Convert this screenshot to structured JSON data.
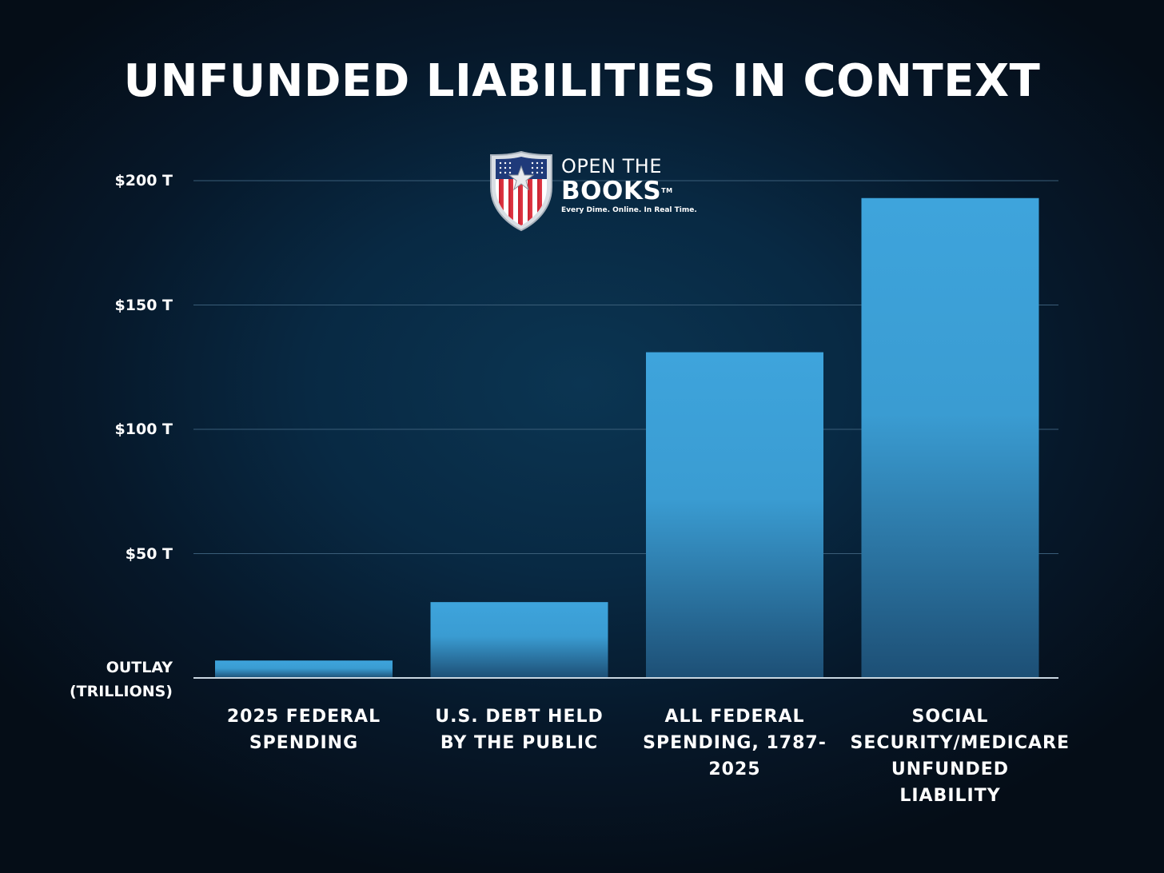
{
  "chart_data": {
    "type": "bar",
    "title": "UNFUNDED LIABILITIES IN CONTEXT",
    "ylabel_lines": [
      "OUTLAY",
      "(TRILLIONS)"
    ],
    "ylim": [
      0,
      200
    ],
    "ytick_values": [
      50,
      100,
      150,
      200
    ],
    "ytick_labels": [
      "$50 T",
      "$100 T",
      "$150 T",
      "$200 T"
    ],
    "grid": true,
    "categories": [
      "2025 FEDERAL SPENDING",
      "U.S. DEBT HELD BY THE PUBLIC",
      "ALL FEDERAL SPENDING, 1787-2025",
      "SOCIAL SECURITY/MEDICARE UNFUNDED LIABILITY"
    ],
    "values": [
      7,
      30.5,
      131,
      193
    ],
    "bar_color": "#3ea1d6"
  },
  "logo": {
    "line1": "OPEN THE",
    "line2": "BOOKS",
    "trademark": "TM",
    "tagline": "Every Dime. Online. In Real Time."
  },
  "colors": {
    "background": "#07101a",
    "text": "#ffffff",
    "bar_top": "#3ea4dc",
    "bar_bottom": "#1d4f75",
    "gridline": "#3a5d78"
  }
}
